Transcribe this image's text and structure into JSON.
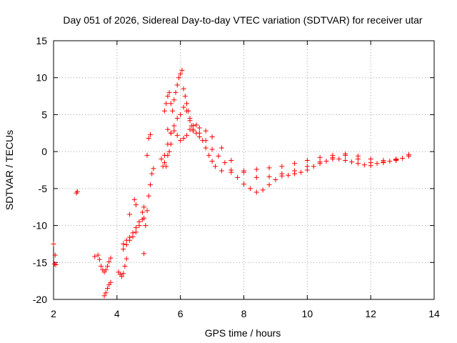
{
  "chart_data": {
    "type": "scatter",
    "title": "Day 051 of 2026, Sidereal Day-to-day VTEC variation (SDTVAR) for receiver utar",
    "xlabel": "GPS time / hours",
    "ylabel": "SDTVAR / TECUs",
    "xlim": [
      2,
      14
    ],
    "ylim": [
      -20,
      15
    ],
    "xticks": [
      2,
      4,
      6,
      8,
      10,
      12,
      14
    ],
    "yticks": [
      -20,
      -15,
      -10,
      -5,
      0,
      5,
      10,
      15
    ],
    "grid": true,
    "marker": "+",
    "series": [
      {
        "name": "SDTVAR",
        "color": "#ff0000",
        "x": [
          2.0,
          2.03,
          2.05,
          2.07,
          2.72,
          2.75,
          3.3,
          3.4,
          3.45,
          3.5,
          3.55,
          3.6,
          3.65,
          3.7,
          3.75,
          3.8,
          3.6,
          3.65,
          3.7,
          3.75,
          3.8,
          4.05,
          4.1,
          4.15,
          4.2,
          4.25,
          4.3,
          4.2,
          4.3,
          4.4,
          4.5,
          4.6,
          4.7,
          4.8,
          4.85,
          4.2,
          4.3,
          4.4,
          4.5,
          4.6,
          4.7,
          4.8,
          4.85,
          4.4,
          4.55,
          4.6,
          4.85,
          4.9,
          4.95,
          5.0,
          5.05,
          5.1,
          5.15,
          4.95,
          5.0,
          5.05,
          5.45,
          5.5,
          5.55,
          5.6,
          5.65,
          5.7,
          5.5,
          5.55,
          5.6,
          5.65,
          5.7,
          5.75,
          5.8,
          5.85,
          5.9,
          5.95,
          6.0,
          6.05,
          6.1,
          6.15,
          6.2,
          6.25,
          6.3,
          6.35,
          6.4,
          6.5,
          6.6,
          6.7,
          6.8,
          6.9,
          7.0,
          7.1,
          7.3,
          7.6,
          8.0,
          8.4,
          8.8,
          9.2,
          9.6,
          10.0,
          10.4,
          10.8,
          11.2,
          11.6,
          12.0,
          12.4,
          12.8,
          13.2,
          5.6,
          5.7,
          5.8,
          5.9,
          6.0,
          6.1,
          6.2,
          6.3,
          6.4,
          6.5,
          6.6,
          6.8,
          7.0,
          7.3,
          7.6,
          8.0,
          8.4,
          8.8,
          9.2,
          9.6,
          10.0,
          10.4,
          10.8,
          11.2,
          11.6,
          12.0,
          12.4,
          12.8,
          13.2,
          5.4,
          5.5,
          5.6,
          5.7,
          5.8,
          5.9,
          6.0,
          6.1,
          6.2,
          6.3,
          6.4,
          6.6,
          6.8,
          7.0,
          7.2,
          7.4,
          7.6,
          7.8,
          8.0,
          8.2,
          8.4,
          8.6,
          8.8,
          9.0,
          9.2,
          9.4,
          9.6,
          9.8,
          10.0,
          10.2,
          10.4,
          10.6,
          10.8,
          11.0,
          11.2,
          11.4,
          11.6,
          11.8,
          12.0,
          12.2,
          12.4,
          12.6,
          12.8,
          13.0,
          13.2
        ],
        "y": [
          -12.5,
          -15.2,
          -14.0,
          -15.3,
          -5.6,
          -5.4,
          -14.2,
          -14.0,
          -14.6,
          -15.5,
          -16.0,
          -16.3,
          -16.0,
          -15.5,
          -14.9,
          -14.4,
          -19.5,
          -19.1,
          -18.5,
          -18.0,
          -17.7,
          -16.3,
          -16.6,
          -16.9,
          -16.5,
          -15.5,
          -14.5,
          -13.2,
          -12.6,
          -12.0,
          -11.5,
          -10.9,
          -10.0,
          -9.2,
          -9.0,
          -12.5,
          -12.0,
          -11.6,
          -11.0,
          -10.3,
          -9.5,
          -8.2,
          -7.5,
          -8.5,
          -6.5,
          -7.2,
          -13.8,
          -10.0,
          -8.0,
          -6.0,
          -4.5,
          -3.0,
          -2.3,
          -0.5,
          1.8,
          2.3,
          -2.0,
          -1.5,
          -2.0,
          -0.5,
          0.0,
          1.0,
          5.5,
          6.5,
          7.5,
          8.0,
          6.5,
          5.5,
          7.0,
          8.0,
          9.0,
          10.0,
          10.5,
          11.0,
          8.5,
          7.5,
          6.5,
          5.5,
          4.5,
          3.5,
          3.0,
          2.5,
          2.0,
          1.5,
          0.5,
          -0.5,
          -1.3,
          -2.0,
          -2.6,
          -2.8,
          -2.6,
          -2.4,
          -2.2,
          -2.0,
          -1.6,
          -1.2,
          -0.8,
          -0.5,
          -0.5,
          -1.0,
          -1.5,
          -1.5,
          -1.2,
          -0.6,
          3.0,
          2.5,
          3.5,
          4.5,
          5.0,
          6.0,
          5.5,
          4.2,
          3.5,
          3.6,
          3.2,
          2.8,
          2.0,
          0.5,
          -1.2,
          -2.8,
          -3.5,
          -3.4,
          -3.0,
          -2.6,
          -2.0,
          -1.4,
          -0.8,
          -0.3,
          -0.6,
          -1.0,
          -1.2,
          -1.0,
          -0.4,
          -1.0,
          -0.5,
          1.0,
          2.5,
          2.8,
          2.2,
          1.5,
          1.8,
          2.2,
          3.0,
          2.8,
          2.5,
          1.5,
          0.3,
          -0.6,
          -1.5,
          -2.5,
          -3.5,
          -4.4,
          -5.0,
          -5.5,
          -5.2,
          -4.5,
          -3.8,
          -3.3,
          -3.2,
          -3.0,
          -2.8,
          -2.5,
          -2.0,
          -1.6,
          -1.3,
          -1.0,
          -1.0,
          -1.2,
          -1.4,
          -1.6,
          -1.8,
          -1.9,
          -1.6,
          -1.4,
          -1.3,
          -1.1,
          -0.9,
          -0.6
        ]
      }
    ]
  }
}
